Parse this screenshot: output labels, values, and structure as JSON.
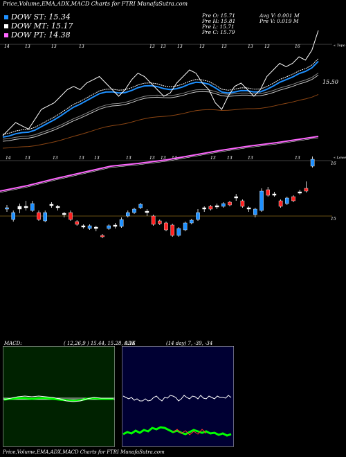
{
  "title": "Price,Volume,EMA,ADX,MACD Charts for FTRI MunafaSutra.com",
  "legend": [
    {
      "label": "DOW ST: 15.34",
      "color": "#1e90ff"
    },
    {
      "label": "DOW MT: 15.17",
      "color": "#ffffff"
    },
    {
      "label": "DOW PT: 14.38",
      "color": "#ff66ff"
    }
  ],
  "info": {
    "prev_o": "Pre   O: 15.71",
    "prev_h": "Pre   H: 15.81",
    "prev_l": "Pre   L: 15.71",
    "prev_c": "Pre   C: 15.79",
    "avg_v": "Avg V: 0.001 M",
    "prev_v": "Pre   V: 0.019 M"
  },
  "price_axis": {
    "dates_top": [
      "14",
      "13",
      "13",
      "13",
      "13",
      "13",
      "13",
      "13",
      "13",
      "13",
      "13",
      "16"
    ],
    "dates_bottom": [
      "14",
      "13",
      "13",
      "13",
      "13",
      "13",
      "13",
      "13",
      "14",
      "13",
      "13",
      "13",
      "13"
    ],
    "label_top": "« Topo",
    "label_bottom": "« Lowes",
    "last_price_label": "15.50",
    "candle_label_top": "16",
    "candle_label_bottom": "15"
  },
  "macd": {
    "title": "MACD:",
    "values": "( 12,26,9 ) 15.44, 15.28, 0.16"
  },
  "adx": {
    "title": "ADX",
    "values": "(14  day) 7, -39, -34"
  },
  "footer": "Price,Volume,EMA,ADX,MACD Charts for FTRI MunafaSutra.com",
  "chart_data": {
    "type": "candlestick",
    "price_line": [
      14.6,
      14.7,
      14.8,
      14.75,
      14.7,
      14.85,
      15.0,
      15.05,
      15.1,
      15.2,
      15.3,
      15.35,
      15.3,
      15.4,
      15.45,
      15.5,
      15.4,
      15.3,
      15.2,
      15.3,
      15.45,
      15.55,
      15.5,
      15.4,
      15.3,
      15.2,
      15.25,
      15.4,
      15.5,
      15.6,
      15.55,
      15.4,
      15.3,
      15.1,
      15.0,
      15.2,
      15.35,
      15.4,
      15.3,
      15.2,
      15.3,
      15.5,
      15.6,
      15.7,
      15.65,
      15.7,
      15.8,
      15.75,
      15.9,
      16.2
    ],
    "candles": [
      {
        "o": 15.1,
        "c": 15.12,
        "h": 15.16,
        "l": 15.06,
        "color": "#1e90ff"
      },
      {
        "o": 14.95,
        "c": 15.05,
        "h": 15.08,
        "l": 14.92,
        "color": "#1e90ff"
      },
      {
        "o": 15.1,
        "c": 15.14,
        "h": 15.18,
        "l": 15.04,
        "color": "#ffffff"
      },
      {
        "o": 15.12,
        "c": 15.14,
        "h": 15.22,
        "l": 15.08,
        "color": "#ffffff"
      },
      {
        "o": 15.08,
        "c": 15.18,
        "h": 15.22,
        "l": 15.06,
        "color": "#1e90ff"
      },
      {
        "o": 15.05,
        "c": 14.95,
        "h": 15.08,
        "l": 14.93,
        "color": "#ff2020"
      },
      {
        "o": 14.93,
        "c": 15.05,
        "h": 15.08,
        "l": 14.91,
        "color": "#1e90ff"
      },
      {
        "o": 15.15,
        "c": 15.17,
        "h": 15.2,
        "l": 15.12,
        "color": "#ffffff"
      },
      {
        "o": 15.12,
        "c": 15.14,
        "h": 15.16,
        "l": 15.08,
        "color": "#ffffff"
      },
      {
        "o": 15.02,
        "c": 15.04,
        "h": 15.06,
        "l": 14.98,
        "color": "#ffffff"
      },
      {
        "o": 15.05,
        "c": 14.95,
        "h": 15.08,
        "l": 14.93,
        "color": "#ff2020"
      },
      {
        "o": 14.92,
        "c": 14.88,
        "h": 14.94,
        "l": 14.86,
        "color": "#ff2020"
      },
      {
        "o": 14.84,
        "c": 14.86,
        "h": 14.88,
        "l": 14.82,
        "color": "#ffffff"
      },
      {
        "o": 14.82,
        "c": 14.86,
        "h": 14.88,
        "l": 14.8,
        "color": "#1e90ff"
      },
      {
        "o": 14.82,
        "c": 14.84,
        "h": 14.86,
        "l": 14.78,
        "color": "#ffffff"
      },
      {
        "o": 14.72,
        "c": 14.7,
        "h": 14.74,
        "l": 14.68,
        "color": "#ff2020"
      },
      {
        "o": 14.82,
        "c": 14.86,
        "h": 14.88,
        "l": 14.8,
        "color": "#1e90ff"
      },
      {
        "o": 14.85,
        "c": 14.87,
        "h": 14.9,
        "l": 14.82,
        "color": "#ffffff"
      },
      {
        "o": 14.85,
        "c": 14.95,
        "h": 14.98,
        "l": 14.83,
        "color": "#1e90ff"
      },
      {
        "o": 15.0,
        "c": 15.05,
        "h": 15.08,
        "l": 14.98,
        "color": "#1e90ff"
      },
      {
        "o": 15.05,
        "c": 15.1,
        "h": 15.12,
        "l": 15.03,
        "color": "#1e90ff"
      },
      {
        "o": 15.12,
        "c": 15.17,
        "h": 15.19,
        "l": 15.1,
        "color": "#1e90ff"
      },
      {
        "o": 15.05,
        "c": 15.07,
        "h": 15.1,
        "l": 15.0,
        "color": "#ffffff"
      },
      {
        "o": 15.0,
        "c": 14.88,
        "h": 15.02,
        "l": 14.86,
        "color": "#ff2020"
      },
      {
        "o": 14.93,
        "c": 14.89,
        "h": 14.95,
        "l": 14.87,
        "color": "#ff2020"
      },
      {
        "o": 14.9,
        "c": 14.8,
        "h": 14.92,
        "l": 14.78,
        "color": "#ff2020"
      },
      {
        "o": 14.87,
        "c": 14.72,
        "h": 14.89,
        "l": 14.7,
        "color": "#ff2020"
      },
      {
        "o": 14.72,
        "c": 14.82,
        "h": 14.84,
        "l": 14.7,
        "color": "#1e90ff"
      },
      {
        "o": 14.8,
        "c": 14.9,
        "h": 14.92,
        "l": 14.78,
        "color": "#1e90ff"
      },
      {
        "o": 14.9,
        "c": 14.94,
        "h": 14.96,
        "l": 14.88,
        "color": "#1e90ff"
      },
      {
        "o": 14.95,
        "c": 15.05,
        "h": 15.1,
        "l": 14.93,
        "color": "#1e90ff"
      },
      {
        "o": 15.1,
        "c": 15.12,
        "h": 15.14,
        "l": 15.06,
        "color": "#ffffff"
      },
      {
        "o": 15.14,
        "c": 15.1,
        "h": 15.16,
        "l": 15.08,
        "color": "#ff2020"
      },
      {
        "o": 15.13,
        "c": 15.15,
        "h": 15.18,
        "l": 15.1,
        "color": "#ffffff"
      },
      {
        "o": 15.14,
        "c": 15.18,
        "h": 15.2,
        "l": 15.12,
        "color": "#1e90ff"
      },
      {
        "o": 15.16,
        "c": 15.2,
        "h": 15.22,
        "l": 15.14,
        "color": "#ff2020"
      },
      {
        "o": 15.26,
        "c": 15.28,
        "h": 15.32,
        "l": 15.22,
        "color": "#ffffff"
      },
      {
        "o": 15.22,
        "c": 15.14,
        "h": 15.24,
        "l": 15.12,
        "color": "#ff2020"
      },
      {
        "o": 15.1,
        "c": 15.12,
        "h": 15.14,
        "l": 15.06,
        "color": "#ffffff"
      },
      {
        "o": 15.02,
        "c": 15.1,
        "h": 15.12,
        "l": 14.98,
        "color": "#1e90ff"
      },
      {
        "o": 15.08,
        "c": 15.36,
        "h": 15.4,
        "l": 15.06,
        "color": "#1e90ff"
      },
      {
        "o": 15.38,
        "c": 15.3,
        "h": 15.42,
        "l": 15.28,
        "color": "#ff2020"
      },
      {
        "o": 15.3,
        "c": 15.32,
        "h": 15.35,
        "l": 15.28,
        "color": "#ffffff"
      },
      {
        "o": 15.22,
        "c": 15.14,
        "h": 15.24,
        "l": 15.12,
        "color": "#ff2020"
      },
      {
        "o": 15.18,
        "c": 15.26,
        "h": 15.28,
        "l": 15.16,
        "color": "#1e90ff"
      },
      {
        "o": 15.28,
        "c": 15.22,
        "h": 15.3,
        "l": 15.2,
        "color": "#ff2020"
      },
      {
        "o": 15.35,
        "c": 15.33,
        "h": 15.38,
        "l": 15.31,
        "color": "#ffffff"
      },
      {
        "o": 15.4,
        "c": 15.36,
        "h": 15.5,
        "l": 15.34,
        "color": "#ff2020"
      },
      {
        "o": 15.72,
        "c": 15.82,
        "h": 15.86,
        "l": 15.7,
        "color": "#1e90ff"
      }
    ]
  }
}
